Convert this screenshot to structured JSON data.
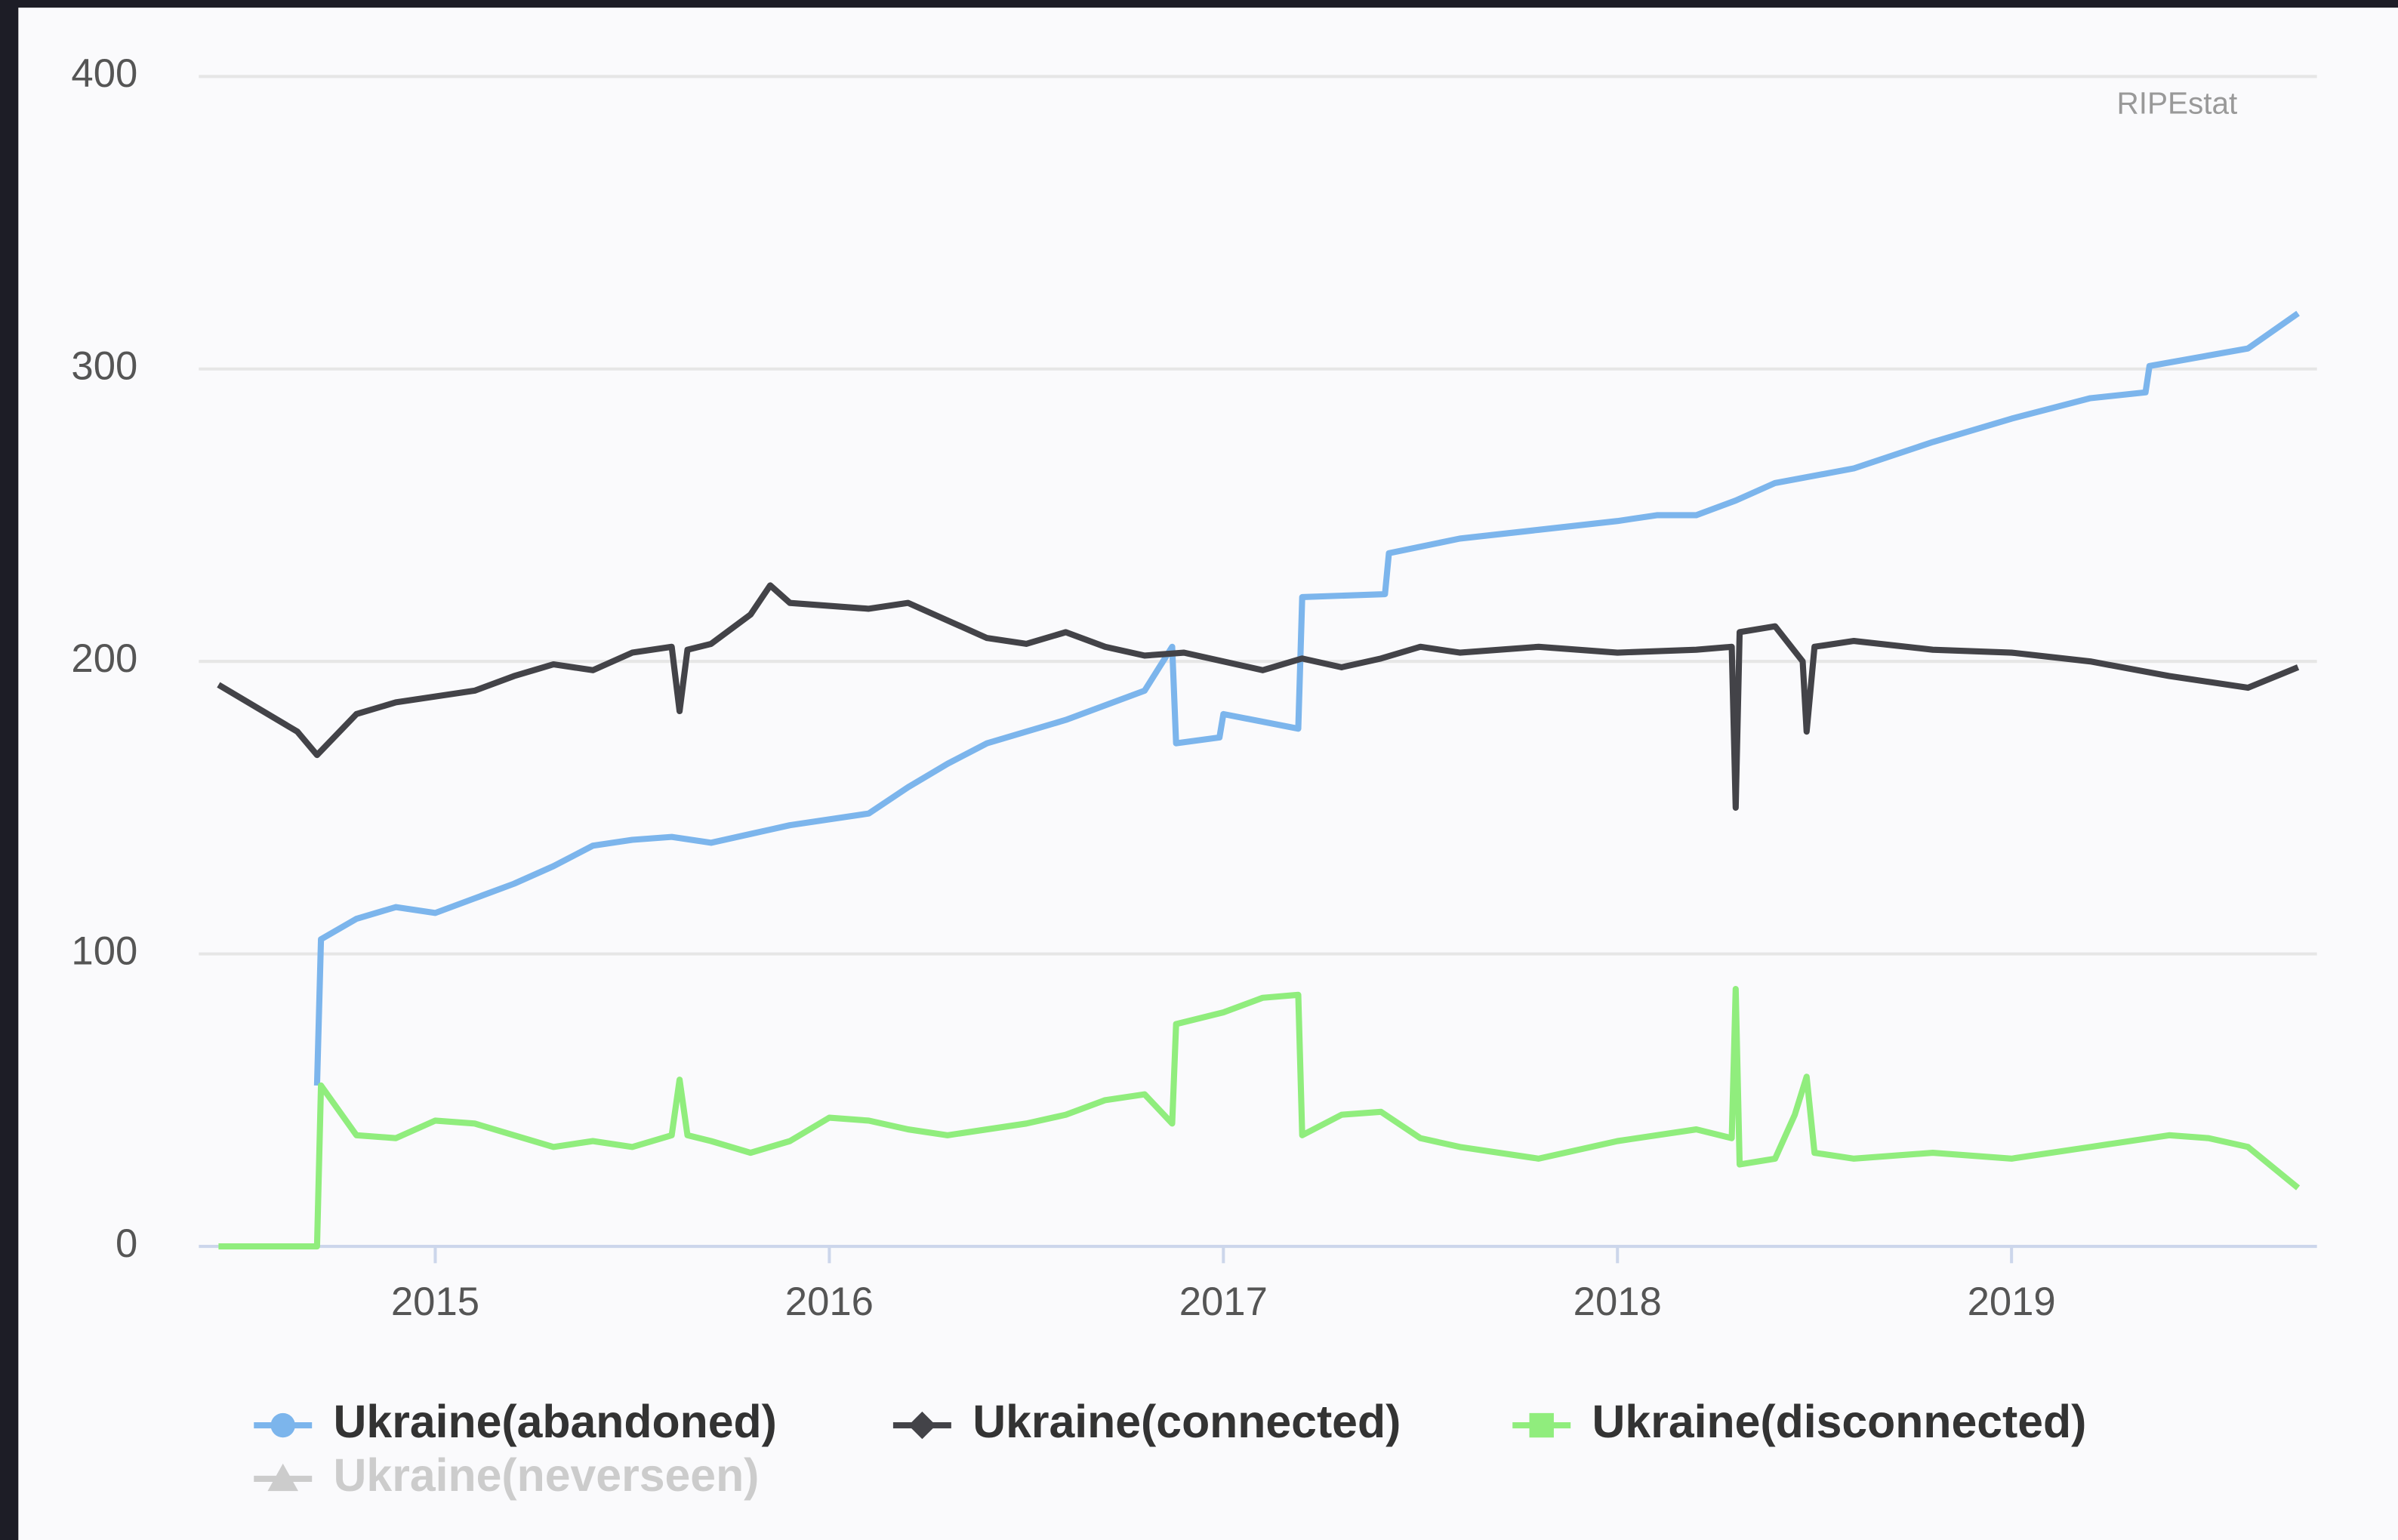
{
  "chart_data": {
    "type": "line",
    "credit": "RIPEstat",
    "xlim": [
      2014.4,
      2019.775
    ],
    "xticks": [
      2015,
      2016,
      2017,
      2018,
      2019
    ],
    "ylim": [
      0,
      400
    ],
    "yticks": [
      0,
      100,
      200,
      300,
      400
    ],
    "grid": true,
    "legend": "bottom",
    "series": [
      {
        "name": "Ukraine(abandoned)",
        "color": "#7cb5ec",
        "marker": "circle",
        "visible": true,
        "x": [
          2014.7,
          2014.71,
          2014.8,
          2014.9,
          2015.0,
          2015.1,
          2015.2,
          2015.3,
          2015.4,
          2015.5,
          2015.6,
          2015.7,
          2015.8,
          2015.9,
          2016.0,
          2016.1,
          2016.2,
          2016.3,
          2016.4,
          2016.5,
          2016.6,
          2016.7,
          2016.8,
          2016.87,
          2016.88,
          2016.99,
          2017.0,
          2017.19,
          2017.2,
          2017.41,
          2017.42,
          2017.6,
          2017.8,
          2018.0,
          2018.1,
          2018.2,
          2018.3,
          2018.4,
          2018.6,
          2018.8,
          2019.0,
          2019.2,
          2019.34,
          2019.35,
          2019.6,
          2019.727
        ],
        "values": [
          55,
          105,
          112,
          116,
          114,
          119,
          124,
          130,
          137,
          139,
          140,
          138,
          141,
          144,
          146,
          148,
          157,
          165,
          172,
          176,
          180,
          185,
          190,
          205,
          172,
          174,
          182,
          177,
          222,
          223,
          237,
          242,
          245,
          248,
          250,
          250,
          255,
          261,
          266,
          275,
          283,
          290,
          292,
          301,
          307,
          319
        ]
      },
      {
        "name": "Ukraine(connected)",
        "color": "#434348",
        "marker": "diamond",
        "visible": true,
        "x": [
          2014.45,
          2014.55,
          2014.65,
          2014.7,
          2014.8,
          2014.9,
          2015.0,
          2015.1,
          2015.2,
          2015.3,
          2015.4,
          2015.5,
          2015.6,
          2015.62,
          2015.64,
          2015.7,
          2015.8,
          2015.85,
          2015.9,
          2016.0,
          2016.1,
          2016.2,
          2016.3,
          2016.4,
          2016.5,
          2016.6,
          2016.7,
          2016.8,
          2016.9,
          2017.0,
          2017.1,
          2017.2,
          2017.3,
          2017.4,
          2017.5,
          2017.6,
          2017.8,
          2018.0,
          2018.2,
          2018.29,
          2018.3,
          2018.31,
          2018.4,
          2018.47,
          2018.48,
          2018.5,
          2018.6,
          2018.8,
          2019.0,
          2019.2,
          2019.4,
          2019.5,
          2019.6,
          2019.727
        ],
        "values": [
          192,
          184,
          176,
          168,
          182,
          186,
          188,
          190,
          195,
          199,
          197,
          203,
          205,
          183,
          204,
          206,
          216,
          226,
          220,
          219,
          218,
          220,
          214,
          208,
          206,
          210,
          205,
          202,
          203,
          200,
          197,
          201,
          198,
          201,
          205,
          203,
          205,
          203,
          204,
          205,
          150,
          210,
          212,
          200,
          176,
          205,
          207,
          204,
          203,
          200,
          195,
          193,
          191,
          198
        ]
      },
      {
        "name": "Ukraine(disconnected)",
        "color": "#90ed7d",
        "marker": "square",
        "visible": true,
        "x": [
          2014.45,
          2014.7,
          2014.71,
          2014.8,
          2014.9,
          2015.0,
          2015.1,
          2015.2,
          2015.3,
          2015.4,
          2015.5,
          2015.6,
          2015.62,
          2015.64,
          2015.7,
          2015.8,
          2015.9,
          2016.0,
          2016.1,
          2016.2,
          2016.3,
          2016.4,
          2016.5,
          2016.6,
          2016.7,
          2016.8,
          2016.87,
          2016.88,
          2017.0,
          2017.1,
          2017.19,
          2017.2,
          2017.3,
          2017.4,
          2017.5,
          2017.6,
          2017.8,
          2018.0,
          2018.2,
          2018.29,
          2018.3,
          2018.31,
          2018.4,
          2018.45,
          2018.48,
          2018.5,
          2018.6,
          2018.8,
          2019.0,
          2019.2,
          2019.4,
          2019.5,
          2019.6,
          2019.727
        ],
        "values": [
          0,
          0,
          55,
          38,
          37,
          43,
          42,
          38,
          34,
          36,
          34,
          38,
          57,
          38,
          36,
          32,
          36,
          44,
          43,
          40,
          38,
          40,
          42,
          45,
          50,
          52,
          42,
          76,
          80,
          85,
          86,
          38,
          45,
          46,
          37,
          34,
          30,
          36,
          40,
          37,
          88,
          28,
          30,
          45,
          58,
          32,
          30,
          32,
          30,
          34,
          38,
          37,
          34,
          20
        ]
      },
      {
        "name": "Ukraine(neverseen)",
        "color": "#cccccc",
        "marker": "triangle",
        "visible": false,
        "x": [],
        "values": []
      }
    ]
  }
}
